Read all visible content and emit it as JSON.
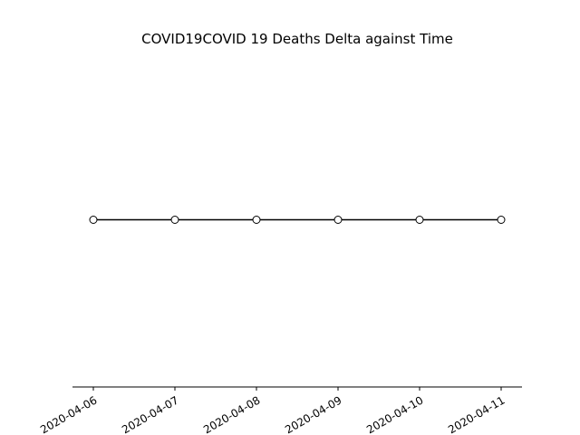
{
  "chart_data": {
    "type": "line",
    "title": "COVID19COVID 19 Deaths Delta against Time",
    "xlabel": "",
    "ylabel": "",
    "x": [
      "2020-04-06",
      "2020-04-07",
      "2020-04-08",
      "2020-04-09",
      "2020-04-10",
      "2020-04-11"
    ],
    "series": [
      {
        "values": [
          0,
          0,
          0,
          0,
          0,
          0
        ]
      }
    ],
    "xticks": [
      "2020-04-06",
      "2020-04-07",
      "2020-04-08",
      "2020-04-09",
      "2020-04-10",
      "2020-04-11"
    ],
    "ylim": [
      -0.055,
      0.055
    ],
    "grid": false,
    "y_axis_visible": false,
    "marker": "open-circle",
    "line_color": "#000000",
    "marker_face_color": "#ffffff"
  }
}
